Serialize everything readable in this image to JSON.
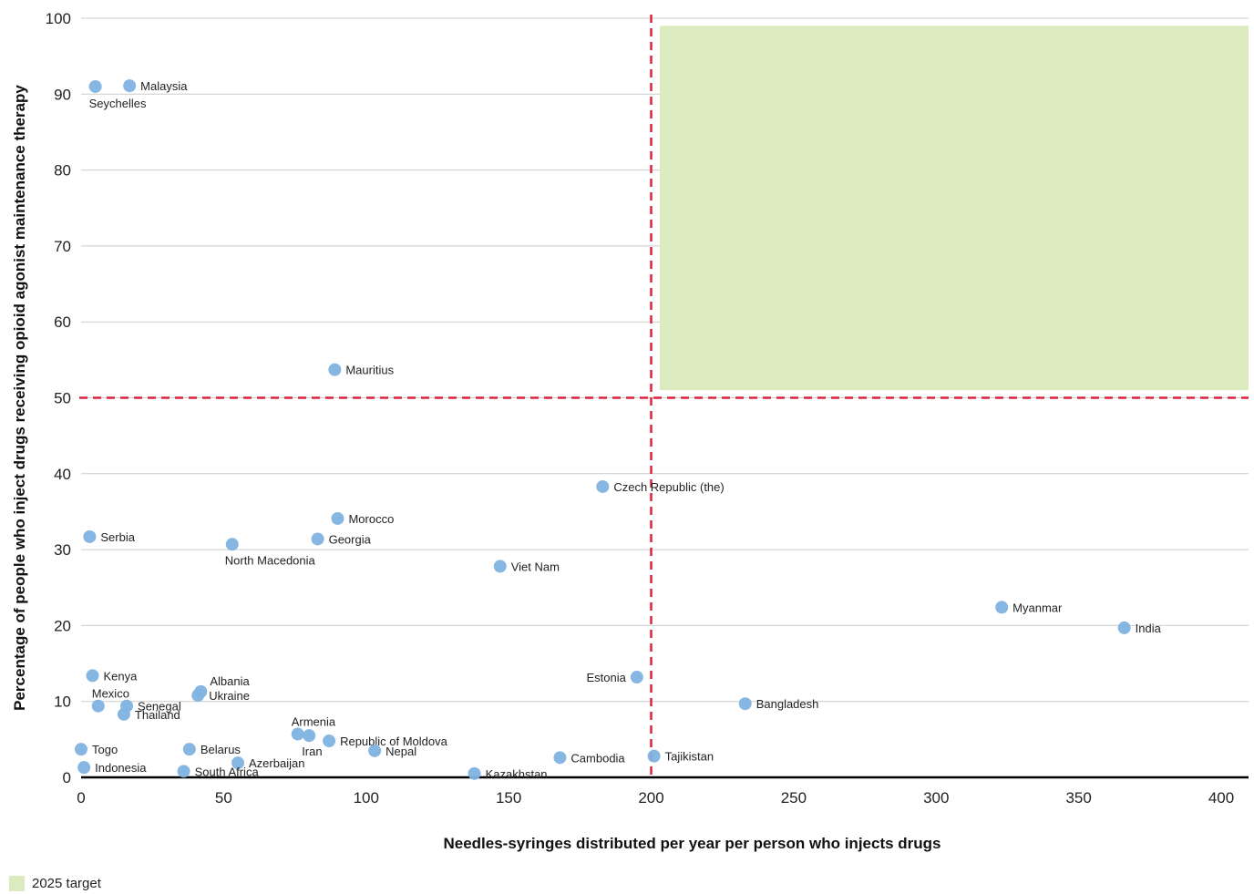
{
  "chart_data": {
    "type": "scatter",
    "xlabel": "Needles-syringes distributed per year per person who injects drugs",
    "ylabel": "Percentage of people who inject drugs receiving opioid agonist maintenance therapy",
    "xlim": [
      0,
      410
    ],
    "ylim": [
      0,
      100
    ],
    "x_ticks": [
      0,
      50,
      100,
      150,
      200,
      250,
      300,
      350,
      400
    ],
    "y_ticks": [
      0,
      10,
      20,
      30,
      40,
      50,
      60,
      70,
      80,
      90,
      100
    ],
    "grid": "horizontal",
    "threshold_x": 200,
    "threshold_y": 50,
    "target_region": {
      "x": [
        203,
        410
      ],
      "y": [
        51,
        99
      ],
      "label": "2025 target"
    },
    "points": [
      {
        "name": "Seychelles",
        "x": 5,
        "y": 91,
        "label_pos": "below-right"
      },
      {
        "name": "Malaysia",
        "x": 17,
        "y": 91.1,
        "label_pos": "right"
      },
      {
        "name": "Mauritius",
        "x": 89,
        "y": 53.7,
        "label_pos": "right"
      },
      {
        "name": "Czech Republic (the)",
        "x": 183,
        "y": 38.3,
        "label_pos": "right"
      },
      {
        "name": "Morocco",
        "x": 90,
        "y": 34.1,
        "label_pos": "right"
      },
      {
        "name": "Serbia",
        "x": 3,
        "y": 31.7,
        "label_pos": "right"
      },
      {
        "name": "Georgia",
        "x": 83,
        "y": 31.4,
        "label_pos": "right"
      },
      {
        "name": "North Macedonia",
        "x": 53,
        "y": 30.7,
        "label_pos": "below"
      },
      {
        "name": "Viet Nam",
        "x": 147,
        "y": 27.8,
        "label_pos": "right"
      },
      {
        "name": "Myanmar",
        "x": 323,
        "y": 22.4,
        "label_pos": "right"
      },
      {
        "name": "India",
        "x": 366,
        "y": 19.7,
        "label_pos": "right"
      },
      {
        "name": "Kenya",
        "x": 4,
        "y": 13.4,
        "label_pos": "right"
      },
      {
        "name": "Estonia",
        "x": 195,
        "y": 13.2,
        "label_pos": "left"
      },
      {
        "name": "Albania",
        "x": 42,
        "y": 11.3,
        "label_pos": "above-right"
      },
      {
        "name": "Ukraine",
        "x": 41,
        "y": 10.8,
        "label_pos": "right"
      },
      {
        "name": "Bangladesh",
        "x": 233,
        "y": 9.7,
        "label_pos": "right"
      },
      {
        "name": "Mexico",
        "x": 6,
        "y": 9.4,
        "label_pos": "above"
      },
      {
        "name": "Senegal",
        "x": 16,
        "y": 9.4,
        "label_pos": "right"
      },
      {
        "name": "Thailand",
        "x": 15,
        "y": 8.3,
        "label_pos": "right"
      },
      {
        "name": "Armenia",
        "x": 76,
        "y": 5.7,
        "label_pos": "above"
      },
      {
        "name": "Iran",
        "x": 80,
        "y": 5.5,
        "label_pos": "below"
      },
      {
        "name": "Republic of Moldova",
        "x": 87,
        "y": 4.8,
        "label_pos": "right"
      },
      {
        "name": "Togo",
        "x": 0,
        "y": 3.7,
        "label_pos": "right"
      },
      {
        "name": "Belarus",
        "x": 38,
        "y": 3.7,
        "label_pos": "right"
      },
      {
        "name": "Nepal",
        "x": 103,
        "y": 3.5,
        "label_pos": "right"
      },
      {
        "name": "Tajikistan",
        "x": 201,
        "y": 2.8,
        "label_pos": "right"
      },
      {
        "name": "Cambodia",
        "x": 168,
        "y": 2.6,
        "label_pos": "right"
      },
      {
        "name": "Azerbaijan",
        "x": 55,
        "y": 1.9,
        "label_pos": "right"
      },
      {
        "name": "Indonesia",
        "x": 1,
        "y": 1.3,
        "label_pos": "right"
      },
      {
        "name": "South Africa",
        "x": 36,
        "y": 0.8,
        "label_pos": "right"
      },
      {
        "name": "Kazakhstan",
        "x": 138,
        "y": 0.5,
        "label_pos": "right"
      }
    ],
    "colors": {
      "point": "#7fb3e0",
      "threshold": "#e0203c",
      "target_fill": "#dcebbf",
      "grid": "#cccccc",
      "axis": "#000000"
    }
  },
  "legend": {
    "swatch_label": "2025 target"
  }
}
